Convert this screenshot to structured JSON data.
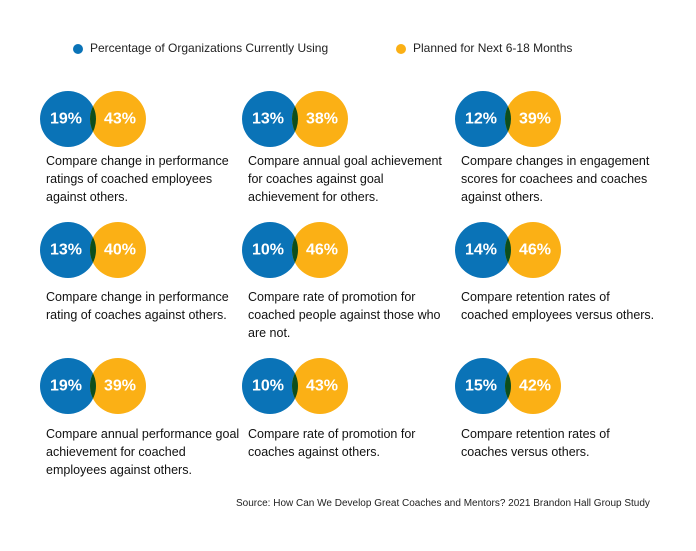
{
  "chart_data": {
    "type": "venn",
    "categories": [
      "Compare change in performance ratings of coached employees against others.",
      "Compare annual goal achievement for coaches against goal achievement for others.",
      "Compare changes in engagement scores for coachees and coaches against others.",
      "Compare change in performance rating of coaches against others.",
      "Compare rate of promotion for coached people against those who are not.",
      "Compare retention rates of coached employees versus others.",
      "Compare annual performance goal achievement for coached employees against others.",
      "Compare rate of promotion for coaches against others.",
      "Compare retention rates of coaches versus others."
    ],
    "series": [
      {
        "name": "Percentage of Organizations Currently Using",
        "color": "#0a73b7",
        "values": [
          19,
          13,
          12,
          13,
          10,
          14,
          19,
          10,
          15
        ],
        "value_labels": [
          "19%",
          "13%",
          "12%",
          "13%",
          "10%",
          "14%",
          "19%",
          "10%",
          "15%"
        ]
      },
      {
        "name": "Planned for Next 6-18 Months",
        "color": "#fbb015",
        "values": [
          43,
          38,
          39,
          40,
          46,
          46,
          39,
          43,
          42
        ],
        "value_labels": [
          "43%",
          "38%",
          "39%",
          "40%",
          "46%",
          "46%",
          "39%",
          "43%",
          "42%"
        ]
      }
    ],
    "overlap_color": "#0c4e1d",
    "source": "Source: How Can We Develop Great Coaches and Mentors? 2021 Brandon Hall Group Study"
  }
}
